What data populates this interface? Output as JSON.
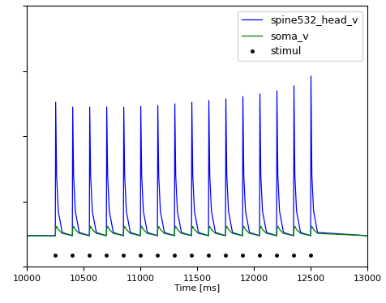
{
  "chart_data": {
    "type": "line",
    "x_label": "Time [ms]",
    "xlim": [
      10000,
      13000
    ],
    "xticks": [
      10000,
      10500,
      11000,
      11500,
      12000,
      12500,
      13000
    ],
    "ylim": [
      -80,
      0
    ],
    "yticks": [
      -80,
      -60,
      -40,
      -20,
      0
    ],
    "tick_labels": "x",
    "grid": false,
    "legend": "upper right",
    "x": [
      10000,
      10249,
      10252,
      10260,
      10275,
      10310,
      10399,
      10402,
      10410,
      10425,
      10460,
      10549,
      10552,
      10560,
      10575,
      10610,
      10699,
      10702,
      10710,
      10725,
      10760,
      10849,
      10852,
      10860,
      10875,
      10910,
      10999,
      11002,
      11010,
      11025,
      11060,
      11149,
      11152,
      11160,
      11175,
      11210,
      11299,
      11302,
      11310,
      11325,
      11360,
      11449,
      11452,
      11460,
      11475,
      11510,
      11599,
      11602,
      11610,
      11625,
      11660,
      11749,
      11752,
      11760,
      11775,
      11810,
      11899,
      11902,
      11910,
      11925,
      11960,
      12049,
      12052,
      12060,
      12075,
      12110,
      12199,
      12202,
      12210,
      12225,
      12260,
      12349,
      12352,
      12360,
      12375,
      12410,
      12499,
      12502,
      12510,
      12525,
      12560,
      13000
    ],
    "series": [
      {
        "name": "spine532_head_v",
        "color": "#0000ff",
        "line_style": "solid",
        "values": [
          -70.5,
          -70.5,
          -29.5,
          -52,
          -63,
          -69.5,
          -70.5,
          -31,
          -52,
          -63,
          -69.5,
          -70.5,
          -31,
          -52,
          -63,
          -69.5,
          -70.5,
          -31,
          -52,
          -63,
          -69.5,
          -70.5,
          -31,
          -52,
          -63,
          -69.5,
          -70.5,
          -30.8,
          -52,
          -63,
          -69.5,
          -70.5,
          -30.5,
          -52,
          -63,
          -69.5,
          -70.5,
          -30,
          -52,
          -63,
          -69.5,
          -70.5,
          -29.5,
          -52,
          -63,
          -69.5,
          -70.5,
          -29,
          -52,
          -63,
          -69.5,
          -70.5,
          -28.5,
          -52,
          -63,
          -69.5,
          -70.5,
          -27.8,
          -52,
          -63,
          -69.5,
          -70.5,
          -27,
          -52,
          -63,
          -69.5,
          -70.5,
          -26,
          -52,
          -63,
          -69.5,
          -70.5,
          -24.5,
          -52,
          -63,
          -69.5,
          -70.5,
          -21.5,
          -52,
          -63,
          -69.5,
          -70.5
        ]
      },
      {
        "name": "soma_v",
        "color": "#008000",
        "line_style": "solid",
        "values": [
          -70.5,
          -70.5,
          -68.5,
          -67.6,
          -68.6,
          -69.8,
          -70.5,
          -68.5,
          -67.6,
          -68.6,
          -69.8,
          -70.5,
          -68.5,
          -67.6,
          -68.6,
          -69.8,
          -70.5,
          -68.5,
          -67.6,
          -68.6,
          -69.8,
          -70.5,
          -68.5,
          -67.6,
          -68.6,
          -69.8,
          -70.5,
          -68.5,
          -67.6,
          -68.6,
          -69.8,
          -70.5,
          -68.5,
          -67.6,
          -68.6,
          -69.8,
          -70.5,
          -68.5,
          -67.6,
          -68.6,
          -69.8,
          -70.5,
          -68.5,
          -67.6,
          -68.6,
          -69.8,
          -70.5,
          -68.5,
          -67.6,
          -68.6,
          -69.8,
          -70.5,
          -68.5,
          -67.6,
          -68.6,
          -69.8,
          -70.5,
          -68.5,
          -67.6,
          -68.6,
          -69.8,
          -70.5,
          -68.5,
          -67.6,
          -68.6,
          -69.8,
          -70.5,
          -68.5,
          -67.6,
          -68.6,
          -69.8,
          -70.5,
          -68.5,
          -67.6,
          -68.6,
          -69.8,
          -70.5,
          -68.5,
          -67.6,
          -68.6,
          -69.8,
          -70.5
        ]
      },
      {
        "name": "stimul",
        "color": "#000000",
        "marker": "o",
        "line_style": "none",
        "x": [
          10250,
          10400,
          10550,
          10700,
          10850,
          11000,
          11150,
          11300,
          11450,
          11600,
          11750,
          11900,
          12050,
          12200,
          12350,
          12500
        ],
        "values": [
          -76.5,
          -76.5,
          -76.5,
          -76.5,
          -76.5,
          -76.5,
          -76.5,
          -76.5,
          -76.5,
          -76.5,
          -76.5,
          -76.5,
          -76.5,
          -76.5,
          -76.5,
          -76.5
        ]
      }
    ]
  }
}
